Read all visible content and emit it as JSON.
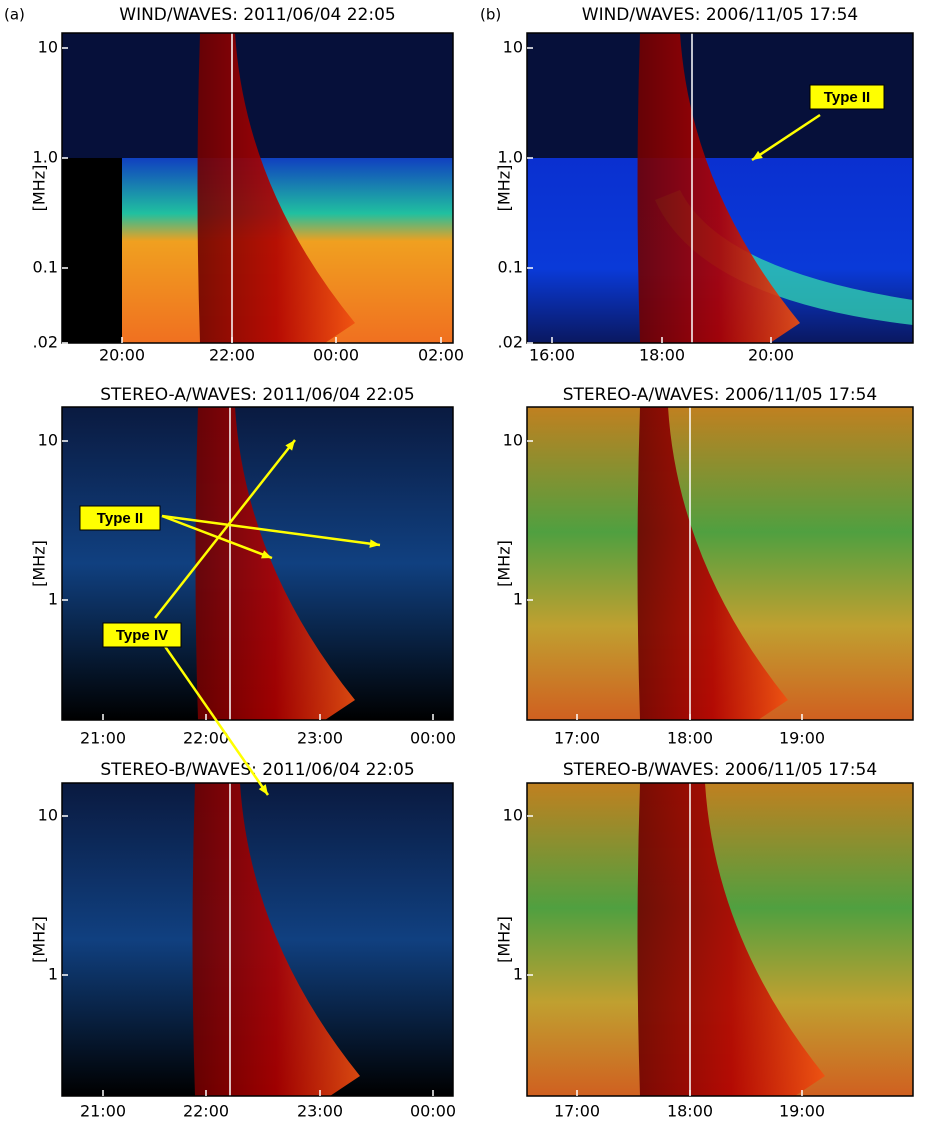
{
  "panel_labels": [
    "(a)",
    "(b)"
  ],
  "panels": [
    {
      "title": "WIND/WAVES: 2011/06/04 22:05",
      "y_label": "[MHz]",
      "yticks": [
        "10",
        "1.0",
        "0.1",
        ".02"
      ],
      "xticks": [
        "20:00",
        "22:00",
        "00:00",
        "02:00"
      ]
    },
    {
      "title": "WIND/WAVES: 2006/11/05 17:54",
      "y_label": "[MHz]",
      "yticks": [
        "10",
        "1.0",
        "0.1",
        ".02"
      ],
      "xticks": [
        "16:00",
        "18:00",
        "20:00"
      ]
    },
    {
      "title": "STEREO-A/WAVES: 2011/06/04 22:05",
      "y_label": "[MHz]",
      "yticks": [
        "10",
        "1"
      ],
      "xticks": [
        "21:00",
        "22:00",
        "23:00",
        "00:00"
      ]
    },
    {
      "title": "STEREO-A/WAVES: 2006/11/05 17:54",
      "y_label": "[MHz]",
      "yticks": [
        "10",
        "1"
      ],
      "xticks": [
        "17:00",
        "18:00",
        "19:00"
      ]
    },
    {
      "title": "STEREO-B/WAVES: 2011/06/04 22:05",
      "y_label": "[MHz]",
      "yticks": [
        "10",
        "1"
      ],
      "xticks": [
        "21:00",
        "22:00",
        "23:00",
        "00:00"
      ]
    },
    {
      "title": "STEREO-B/WAVES: 2006/11/05 17:54",
      "y_label": "[MHz]",
      "yticks": [
        "10",
        "1"
      ],
      "xticks": [
        "17:00",
        "18:00",
        "19:00"
      ]
    }
  ],
  "annotations": [
    "Type II",
    "Type IV",
    "Type II"
  ]
}
